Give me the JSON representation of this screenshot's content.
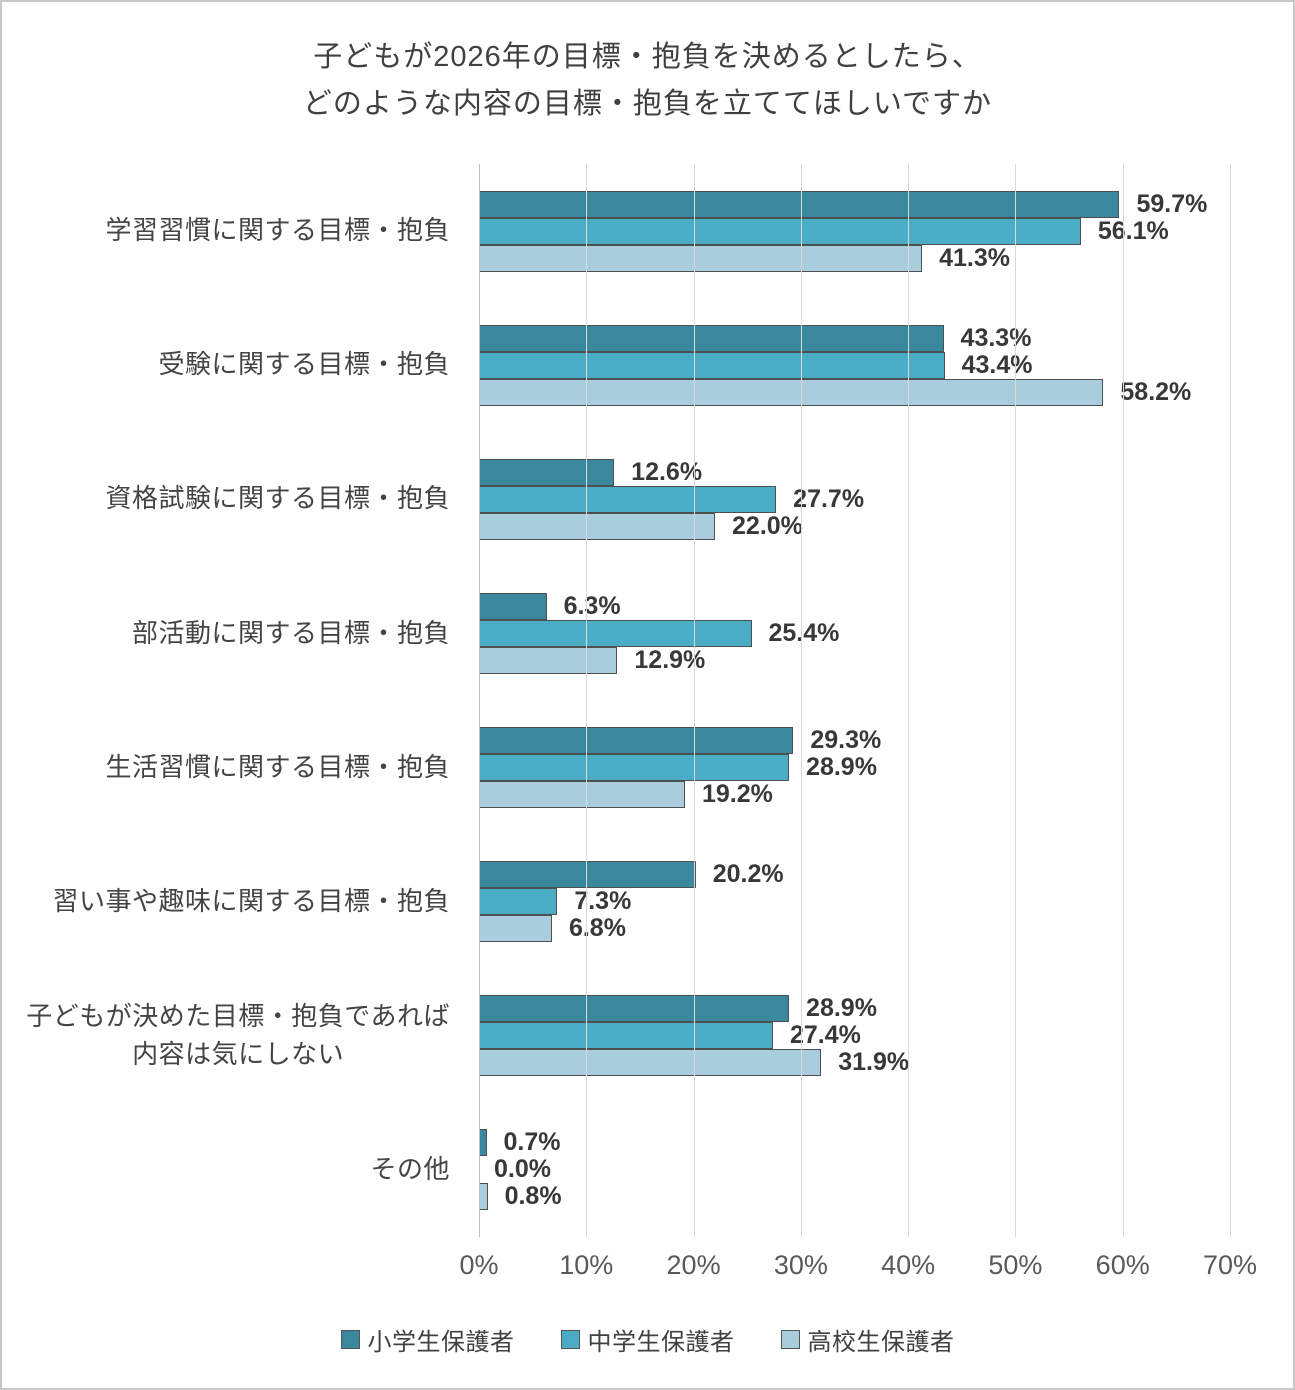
{
  "chart_data": {
    "type": "bar",
    "orientation": "horizontal",
    "title": "子どもが2026年の目標・抱負を決めるとしたら、\nどのような内容の目標・抱負を立ててほしいですか",
    "categories": [
      "学習習慣に関する目標・抱負",
      "受験に関する目標・抱負",
      "資格試験に関する目標・抱負",
      "部活動に関する目標・抱負",
      "生活習慣に関する目標・抱負",
      "習い事や趣味に関する目標・抱負",
      "子どもが決めた目標・抱負であれば\n内容は気にしない",
      "その他"
    ],
    "series": [
      {
        "name": "小学生保護者",
        "color": "#39889E",
        "values": [
          59.7,
          43.3,
          12.6,
          6.3,
          29.3,
          20.2,
          28.9,
          0.7
        ]
      },
      {
        "name": "中学生保護者",
        "color": "#4BACC6",
        "values": [
          56.1,
          43.4,
          27.7,
          25.4,
          28.9,
          7.3,
          27.4,
          0.0
        ]
      },
      {
        "name": "高校生保護者",
        "color": "#A9CDDD",
        "values": [
          41.3,
          58.2,
          22.0,
          12.9,
          19.2,
          6.8,
          31.9,
          0.8
        ]
      }
    ],
    "value_label_suffix": "%",
    "value_label_decimals": 1,
    "x_axis": {
      "min": 0,
      "max": 70,
      "tick_step": 10,
      "tick_labels": [
        "0%",
        "10%",
        "20%",
        "30%",
        "40%",
        "50%",
        "60%",
        "70%"
      ]
    },
    "grid": "vertical",
    "legend_position": "bottom",
    "colors": {
      "grid_line": "#d9d9d9",
      "axis_line": "#c0c0c0",
      "bar_border": "#4f4f4f",
      "title_text": "#404040",
      "category_text": "#444444",
      "value_text": "#383838",
      "axis_text": "#595959",
      "frame_border": "#c8c8c8"
    }
  }
}
